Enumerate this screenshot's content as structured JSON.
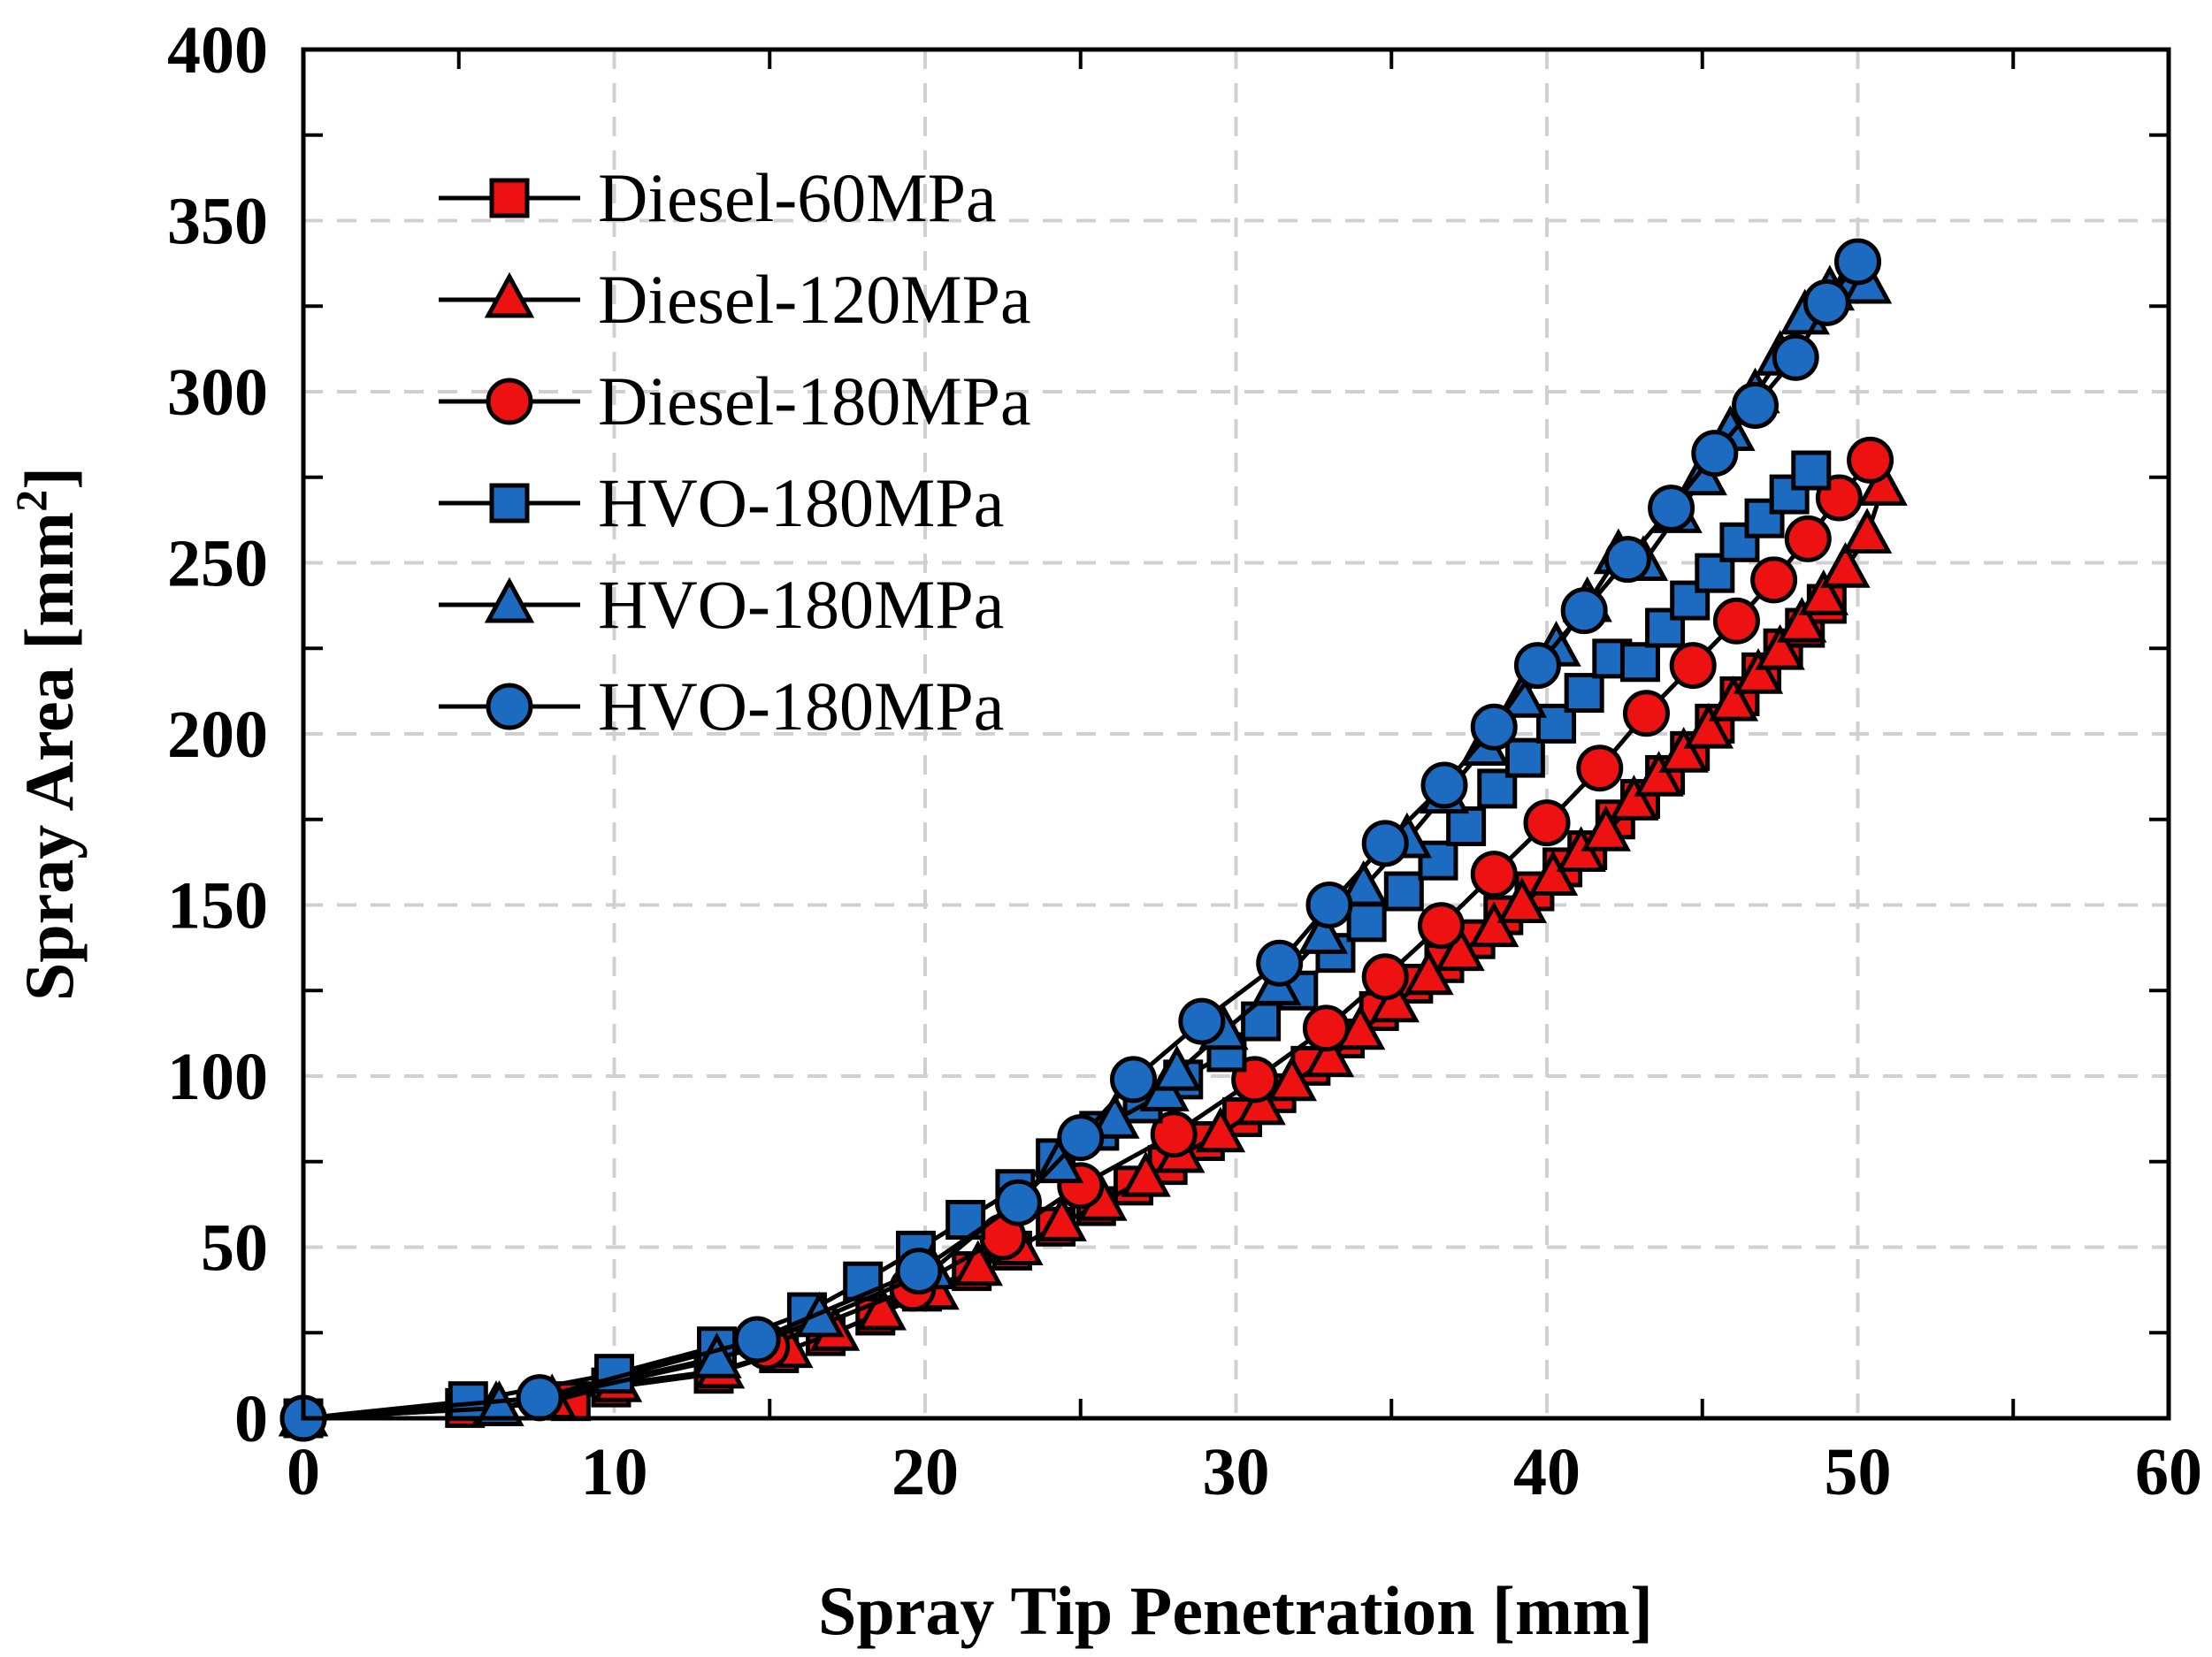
{
  "chart_data": {
    "type": "scatter",
    "title": "",
    "xlabel": "Spray Tip Penetration [mm]",
    "ylabel_main": "Spray Area [mm",
    "ylabel_sup": "2",
    "ylabel_end": "]",
    "xlim": [
      0,
      60
    ],
    "ylim": [
      0,
      400
    ],
    "xticks": [
      0,
      10,
      20,
      30,
      40,
      50,
      60
    ],
    "yticks": [
      0,
      50,
      100,
      150,
      200,
      250,
      300,
      350,
      400
    ],
    "grid": true,
    "legend_position": "top-left",
    "series": [
      {
        "name": "Diesel-60MPa",
        "marker": "square",
        "color": "#ee1111",
        "x": [
          0,
          5.2,
          8.6,
          9.9,
          13.2,
          15.3,
          16.8,
          18.4,
          19.9,
          21.5,
          22.8,
          24.2,
          25.5,
          26.7,
          27.8,
          29.0,
          30.2,
          31.3,
          32.4,
          33.5,
          34.6,
          35.7,
          36.7,
          37.7,
          38.6,
          39.6,
          40.5,
          41.3,
          42.2,
          43.0,
          43.8,
          44.6,
          45.4,
          46.2,
          46.9,
          47.6,
          48.3,
          49.0
        ],
        "y": [
          0,
          3,
          5,
          9,
          13,
          19,
          24,
          30,
          37,
          43,
          49,
          56,
          62,
          68,
          74,
          81,
          88,
          95,
          103,
          111,
          119,
          127,
          133,
          140,
          147,
          154,
          161,
          166,
          175,
          181,
          188,
          195,
          203,
          211,
          218,
          225,
          231,
          238
        ]
      },
      {
        "name": "Diesel-120MPa",
        "marker": "triangle",
        "color": "#ee1111",
        "x": [
          0,
          6.2,
          8.0,
          10.1,
          13.4,
          15.6,
          17.1,
          18.6,
          20.3,
          21.7,
          23.0,
          24.4,
          25.7,
          27.1,
          28.2,
          29.5,
          30.8,
          31.8,
          33.0,
          34.0,
          35.1,
          36.2,
          37.2,
          38.3,
          39.2,
          40.2,
          41.1,
          41.9,
          42.8,
          43.6,
          44.4,
          45.2,
          46.0,
          46.8,
          47.5,
          48.2,
          48.9,
          49.6,
          50.3,
          50.8
        ],
        "y": [
          0,
          3,
          5,
          10,
          14,
          20,
          25,
          31,
          37,
          44,
          50,
          57,
          63,
          70,
          77,
          83,
          91,
          98,
          105,
          113,
          121,
          129,
          136,
          143,
          150,
          158,
          165,
          171,
          180,
          187,
          194,
          201,
          209,
          217,
          224,
          232,
          240,
          248,
          258,
          272
        ]
      },
      {
        "name": "Diesel-180MPa",
        "marker": "circle",
        "color": "#ee1111",
        "x": [
          0,
          7.6,
          14.9,
          19.6,
          22.5,
          25.0,
          28.0,
          30.6,
          32.9,
          34.8,
          36.6,
          38.3,
          40.0,
          41.7,
          43.2,
          44.7,
          46.1,
          47.3,
          48.4,
          49.4,
          50.4
        ],
        "y": [
          0,
          6,
          21,
          38,
          53,
          68,
          83,
          99,
          114,
          129,
          144,
          159,
          174,
          190,
          206,
          220,
          233,
          245,
          257,
          269,
          280
        ]
      },
      {
        "name": "HVO-180MPa",
        "marker": "square",
        "color": "#1c6bc0",
        "x": [
          0,
          5.3,
          10.0,
          13.3,
          16.2,
          18.0,
          19.7,
          21.3,
          22.9,
          24.2,
          25.6,
          27.0,
          28.3,
          29.7,
          30.8,
          32.0,
          33.2,
          34.2,
          35.4,
          36.5,
          37.4,
          38.4,
          39.3,
          40.3,
          41.2,
          42.1,
          43.0,
          43.8,
          44.6,
          45.4,
          46.2,
          47.0,
          47.8,
          48.5
        ],
        "y": [
          0,
          5,
          13,
          21,
          31,
          40,
          49,
          58,
          67,
          76,
          84,
          92,
          99,
          107,
          116,
          125,
          136,
          145,
          154,
          163,
          173,
          184,
          193,
          203,
          212,
          222,
          221,
          231,
          239,
          247,
          256,
          263,
          270,
          277
        ]
      },
      {
        "name": "HVO-180MPa",
        "marker": "triangle",
        "color": "#1c6bc0",
        "x": [
          0,
          6.3,
          13.3,
          16.6,
          20.2,
          24.3,
          26.1,
          27.7,
          28.1,
          29.6,
          31.3,
          32.8,
          34.1,
          35.5,
          36.7,
          38.0,
          39.2,
          40.3,
          41.3,
          42.3,
          43.1,
          44.2,
          45.0,
          45.9,
          46.7,
          47.5,
          48.3,
          49.1,
          49.7,
          50.3
        ],
        "y": [
          0,
          3,
          17,
          29,
          43,
          74,
          87,
          95,
          101,
          113,
          126,
          141,
          155,
          169,
          182,
          196,
          210,
          225,
          238,
          252,
          250,
          264,
          275,
          288,
          299,
          310,
          322,
          329,
          331,
          331
        ]
      },
      {
        "name": "HVO-180MPa",
        "marker": "circle",
        "color": "#1c6bc0",
        "x": [
          0,
          7.6,
          14.6,
          19.8,
          23.0,
          25.0,
          26.7,
          28.9,
          31.4,
          33.0,
          34.8,
          36.7,
          38.3,
          39.7,
          41.2,
          42.6,
          44.0,
          45.4,
          46.7,
          48.0,
          49.0,
          50.0
        ],
        "y": [
          0,
          6,
          23,
          43,
          63,
          82,
          99,
          116,
          133,
          150,
          168,
          185,
          202,
          220,
          236,
          251,
          266,
          282,
          296,
          310,
          326,
          338
        ]
      }
    ]
  }
}
